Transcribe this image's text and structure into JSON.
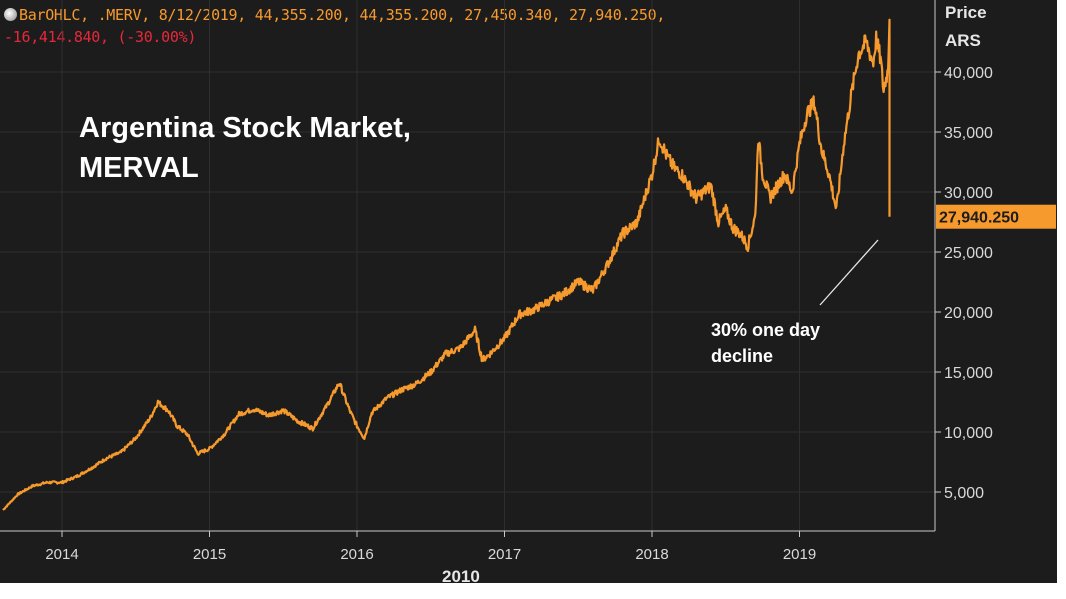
{
  "header": {
    "line1": "BarOHLC, .MERV, 8/12/2019, 44,355.200, 44,355.200, 27,450.340, 27,940.250,",
    "line2": "-16,414.840, (-30.00%)"
  },
  "chart_data": {
    "type": "line",
    "title": [
      "Argentina Stock Market,",
      "MERVAL"
    ],
    "ylabel": [
      "Price",
      "ARS"
    ],
    "x_axis_label": "2010",
    "ylim": [
      0,
      44000
    ],
    "yticks": [
      5000,
      10000,
      15000,
      20000,
      25000,
      30000,
      35000,
      40000
    ],
    "ytick_labels": [
      "5,000",
      "10,000",
      "15,000",
      "20,000",
      "25,000",
      "30,000",
      "35,000",
      "40,000"
    ],
    "xticks": [
      2014,
      2015,
      2016,
      2017,
      2018,
      2019
    ],
    "xtick_labels": [
      "2014",
      "2015",
      "2016",
      "2017",
      "2018",
      "2019"
    ],
    "xlim": [
      2013.6,
      2019.7
    ],
    "grid": true,
    "last_price": 27940.25,
    "last_price_label": "27,940.250",
    "annotation": [
      "30% one day",
      "decline"
    ],
    "series": [
      {
        "color": "#f79a2d",
        "x": [
          2013.6,
          2013.7,
          2013.8,
          2013.9,
          2014.0,
          2014.1,
          2014.2,
          2014.3,
          2014.4,
          2014.5,
          2014.6,
          2014.65,
          2014.72,
          2014.78,
          2014.85,
          2014.92,
          2015.0,
          2015.1,
          2015.2,
          2015.3,
          2015.4,
          2015.5,
          2015.6,
          2015.7,
          2015.8,
          2015.88,
          2015.95,
          2016.0,
          2016.05,
          2016.1,
          2016.2,
          2016.3,
          2016.4,
          2016.5,
          2016.6,
          2016.7,
          2016.8,
          2016.85,
          2016.9,
          2017.0,
          2017.1,
          2017.2,
          2017.3,
          2017.4,
          2017.5,
          2017.6,
          2017.7,
          2017.8,
          2017.9,
          2018.0,
          2018.05,
          2018.1,
          2018.15,
          2018.2,
          2018.3,
          2018.4,
          2018.45,
          2018.5,
          2018.55,
          2018.6,
          2018.65,
          2018.7,
          2018.72,
          2018.75,
          2018.8,
          2018.85,
          2018.9,
          2018.95,
          2019.0,
          2019.05,
          2019.1,
          2019.15,
          2019.2,
          2019.25,
          2019.3,
          2019.35,
          2019.4,
          2019.45,
          2019.5,
          2019.52,
          2019.55,
          2019.57,
          2019.6,
          2019.61,
          2019.61
        ],
        "values": [
          3500,
          4800,
          5500,
          5800,
          5800,
          6300,
          7000,
          7800,
          8300,
          9500,
          11200,
          12500,
          11800,
          10500,
          9800,
          8200,
          8600,
          9800,
          11500,
          11900,
          11400,
          11800,
          10900,
          10300,
          12300,
          14100,
          11800,
          10500,
          9500,
          11600,
          12800,
          13500,
          14000,
          15000,
          16500,
          17000,
          18500,
          16000,
          16500,
          17800,
          19800,
          20200,
          20900,
          21500,
          22500,
          21800,
          24000,
          26500,
          27500,
          31500,
          34500,
          33000,
          32000,
          31500,
          29500,
          30500,
          27500,
          28500,
          27000,
          26500,
          25500,
          28000,
          34500,
          31500,
          29500,
          30500,
          31500,
          30000,
          34000,
          36500,
          37500,
          33500,
          31500,
          28500,
          34000,
          38000,
          41500,
          42500,
          40800,
          42800,
          41000,
          38500,
          40200,
          44355,
          27940
        ]
      }
    ]
  }
}
